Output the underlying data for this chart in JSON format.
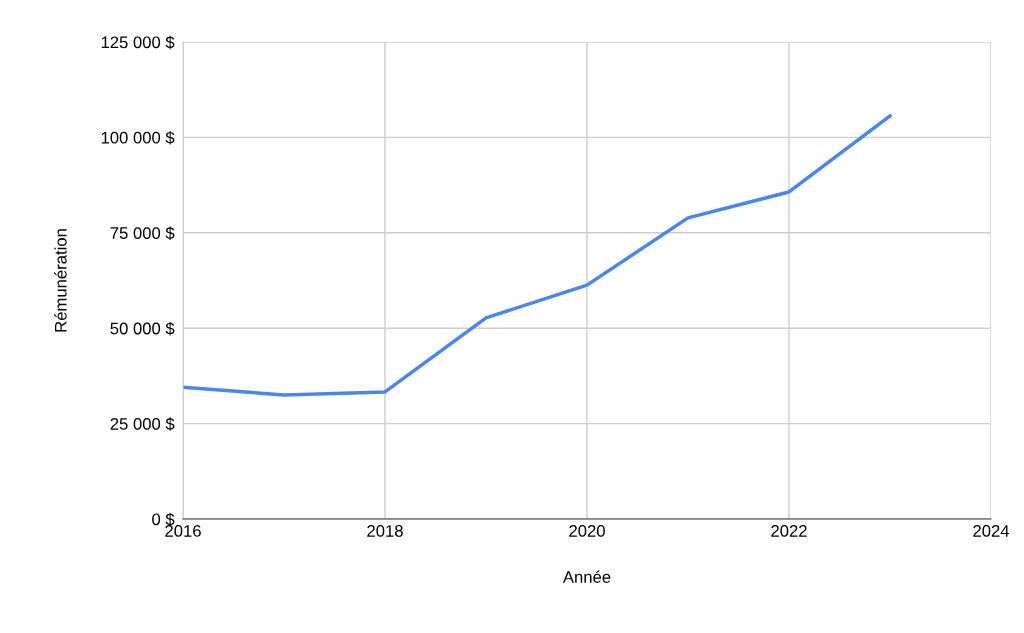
{
  "chart_data": {
    "type": "line",
    "xlabel": "Année",
    "ylabel": "Rémunération",
    "x": [
      2016,
      2017,
      2018,
      2019,
      2020,
      2021,
      2022,
      2023
    ],
    "series": [
      {
        "color": "#4a86e8",
        "values": [
          34500,
          32500,
          33300,
          52700,
          61300,
          78900,
          85700,
          105600
        ]
      }
    ],
    "xlim": [
      2016,
      2024
    ],
    "xticks": [
      2016,
      2018,
      2020,
      2022,
      2024
    ],
    "ylim": [
      0,
      125000
    ],
    "yticks": [
      {
        "value": 0,
        "label": "0 $"
      },
      {
        "value": 25000,
        "label": "25 000 $"
      },
      {
        "value": 50000,
        "label": "50 000 $"
      },
      {
        "value": 75000,
        "label": "75 000 $"
      },
      {
        "value": 100000,
        "label": "100 000 $"
      },
      {
        "value": 125000,
        "label": "125 000 $"
      }
    ],
    "grid": true,
    "legend": false,
    "marker": "none",
    "line_style": "solid"
  }
}
